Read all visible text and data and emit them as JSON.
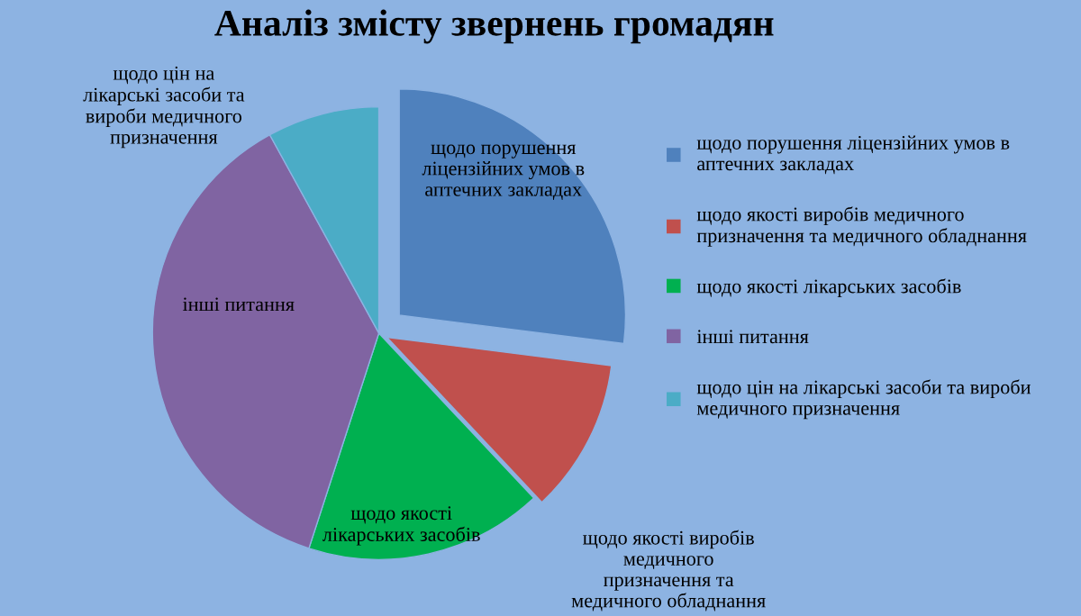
{
  "chart_data": {
    "type": "pie",
    "title": "Аналіз змісту звернень громадян",
    "categories": [
      "щодо порушення ліцензійних умов в аптечних закладах",
      "щодо якості виробів медичного призначення та медичного обладнання",
      "щодо якості лікарських засобів",
      "інші питання",
      "щодо цін на лікарські засоби та вироби медичного призначення"
    ],
    "values": [
      27,
      11,
      17,
      37,
      8
    ],
    "colors": [
      "#4f81bd",
      "#c0504d",
      "#00b050",
      "#8064a2",
      "#4bacc6"
    ],
    "legend": "right"
  }
}
